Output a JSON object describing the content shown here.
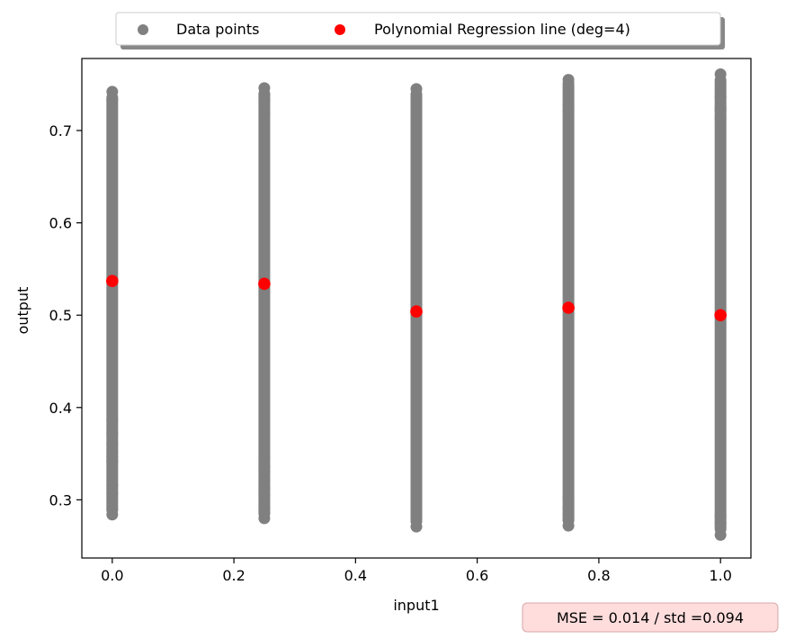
{
  "chart_data": {
    "type": "scatter",
    "title": "",
    "xlabel": "input1",
    "ylabel": "output",
    "xlim": [
      -0.05,
      1.05
    ],
    "ylim": [
      0.237,
      0.778
    ],
    "x_ticks": [
      0.0,
      0.2,
      0.4,
      0.6,
      0.8,
      1.0
    ],
    "x_tick_labels": [
      "0.0",
      "0.2",
      "0.4",
      "0.6",
      "0.8",
      "1.0"
    ],
    "y_ticks": [
      0.3,
      0.4,
      0.5,
      0.6,
      0.7
    ],
    "y_tick_labels": [
      "0.3",
      "0.4",
      "0.5",
      "0.6",
      "0.7"
    ],
    "grid": false,
    "legend": {
      "placement": "top-center",
      "entries": [
        {
          "label": "Data points",
          "color": "#808080"
        },
        {
          "label": "Polynomial Regression line (deg=4)",
          "color": "#ff0000"
        }
      ]
    },
    "series": [
      {
        "name": "Data points",
        "color": "#808080",
        "marker": "o",
        "columns": [
          {
            "x": 0.0,
            "min": 0.284,
            "max": 0.742,
            "outliers": [
              0.284,
              0.289,
              0.307,
              0.316,
              0.342,
              0.347,
              0.352,
              0.361,
              0.372,
              0.386,
              0.733,
              0.742
            ]
          },
          {
            "x": 0.25,
            "min": 0.28,
            "max": 0.746,
            "outliers": [
              0.28,
              0.285,
              0.292,
              0.306,
              0.312,
              0.321,
              0.331,
              0.336,
              0.345,
              0.72,
              0.733,
              0.739,
              0.746
            ]
          },
          {
            "x": 0.5,
            "min": 0.271,
            "max": 0.745,
            "outliers": [
              0.271,
              0.277,
              0.282,
              0.294,
              0.301,
              0.728,
              0.735,
              0.739,
              0.745
            ]
          },
          {
            "x": 0.75,
            "min": 0.272,
            "max": 0.755,
            "outliers": [
              0.272,
              0.278,
              0.283,
              0.291,
              0.302,
              0.721,
              0.727,
              0.751,
              0.755
            ]
          },
          {
            "x": 1.0,
            "min": 0.262,
            "max": 0.761,
            "outliers": [
              0.262,
              0.275,
              0.283,
              0.713,
              0.722,
              0.725,
              0.737,
              0.761
            ]
          }
        ]
      },
      {
        "name": "Polynomial Regression line (deg=4)",
        "color": "#ff0000",
        "marker": "o",
        "points": [
          {
            "x": 0.0,
            "y": 0.537
          },
          {
            "x": 0.25,
            "y": 0.534
          },
          {
            "x": 0.5,
            "y": 0.504
          },
          {
            "x": 0.75,
            "y": 0.508
          },
          {
            "x": 1.0,
            "y": 0.5
          }
        ]
      }
    ],
    "annotation": {
      "text": "MSE = 0.014 / std =0.094",
      "placement": "bottom-right",
      "background": "#ffdddd",
      "border": "#d8a8a8"
    }
  }
}
